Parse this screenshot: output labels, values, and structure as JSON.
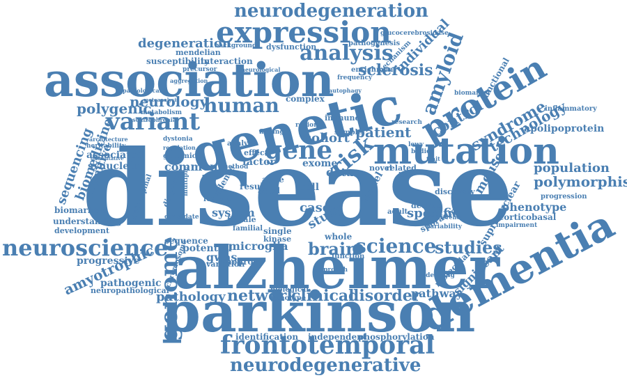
{
  "colors": {
    "word": "#4a7fb2",
    "background": "#ffffff"
  },
  "words": [
    "disease",
    "alzheimer",
    "parkinson",
    "genetic",
    "association",
    "dementia",
    "mutation",
    "protein",
    "expression",
    "frontotemporal",
    "neurodegenerative",
    "neurodegeneration",
    "neuroscience",
    "variant",
    "genome",
    "gene",
    "human",
    "analysis",
    "amyloid",
    "risk",
    "science",
    "brain",
    "studies",
    "sclerosis",
    "individual",
    "amyotrophic",
    "polymorphism",
    "population",
    "clinical",
    "disorder",
    "network",
    "pathology",
    "degeneration",
    "neurology",
    "polygenic",
    "syndrome",
    "technology",
    "control",
    "identification",
    "independent",
    "phosphorylation",
    "sequencing",
    "biomedicine",
    "cognitive",
    "apolipoprotein",
    "mouse",
    "patient",
    "cohort",
    "phenotype",
    "corticobasal",
    "pathway",
    "significant",
    "molecular",
    "supranuclear",
    "specific",
    "sporadic",
    "microglia",
    "gwas",
    "potential",
    "sequence",
    "pathogenic",
    "progressive",
    "neuropathological",
    "biomarkers",
    "understanding",
    "development",
    "associated",
    "synuclein",
    "common",
    "susceptibility",
    "interaction",
    "mendelian",
    "dysfunction",
    "pathogenesis",
    "enrichment",
    "mechanism",
    "functional",
    "inflammatory",
    "progression",
    "data",
    "case",
    "study",
    "model",
    "system",
    "neuron",
    "female",
    "familial",
    "whole",
    "single",
    "kinase",
    "aged",
    "apoe",
    "cell",
    "result",
    "evidence",
    "factor",
    "exome",
    "effect",
    "analyse",
    "finding",
    "region",
    "complex",
    "immune",
    "sample",
    "novel",
    "related",
    "decline",
    "adult",
    "bodies",
    "discovery",
    "research",
    "biological",
    "genotype",
    "variation",
    "chromosome",
    "approach",
    "function",
    "biomarker",
    "glucocerebrosidase",
    "background",
    "heritability",
    "architecture",
    "dystonia",
    "regulation",
    "genomic",
    "feature",
    "candidate",
    "multiple",
    "diagnosis",
    "cerebrospinal",
    "metabolism",
    "schizophrenia",
    "precursor",
    "aggregation",
    "pathological",
    "frequency",
    "autophagy",
    "impairment",
    "variability",
    "difference",
    "underlying",
    "quantitative",
    "metaanalysis",
    "loci",
    "neurological",
    "lewy",
    "trait",
    "method"
  ]
}
